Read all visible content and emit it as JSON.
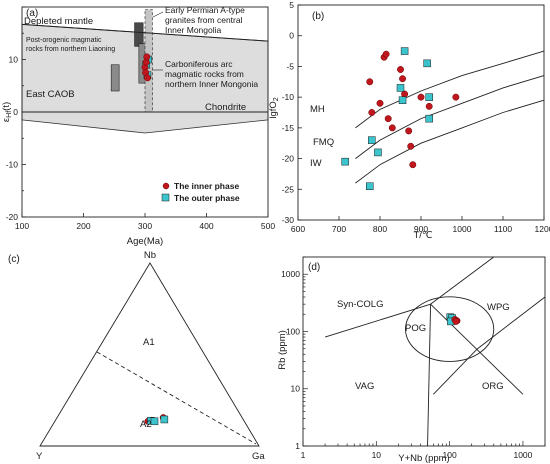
{
  "figure": {
    "panels": [
      {
        "id": "a",
        "panel_label": "(a)",
        "chart_data": {
          "type": "scatter",
          "xlabel": "Age(Ma)",
          "ylabel": "εHf(t)",
          "xlim": [
            100,
            500
          ],
          "ylim": [
            -20,
            20
          ],
          "x_ticks": [
            100,
            200,
            300,
            400,
            500
          ],
          "y_ticks": [
            -20,
            -10,
            0,
            10
          ],
          "reference_lines": [
            {
              "name": "Depleted mantle",
              "points": [
                [
                  0,
                  17.5
                ],
                [
                  500,
                  13.5
                ]
              ]
            },
            {
              "name": "Chondrite",
              "points": [
                [
                  0,
                  0
                ],
                [
                  500,
                  0
                ]
              ]
            }
          ],
          "annotations": [
            "Depleted mantle",
            "Chondrite",
            "East CAOB",
            "Post-orogenic magmatic rocks from northern Liaoning",
            "Early Permian A-type granites from central Inner Mongolia",
            "Carboniferous arc magmatic rocks from northern Inner Mongonia"
          ],
          "field_boxes": [
            {
              "x": [
                245,
                258
              ],
              "y": [
                4,
                9
              ]
            },
            {
              "x": [
                283,
                297
              ],
              "y": [
                12.5,
                17
              ]
            },
            {
              "x": [
                290,
                303
              ],
              "y": [
                5.5,
                13
              ]
            },
            {
              "x": [
                300,
                312
              ],
              "y": [
                0,
                19.5
              ]
            }
          ],
          "series": [
            {
              "name": "The inner phase",
              "x": [
                300,
                301,
                302,
                303,
                304
              ],
              "y": [
                8.5,
                7.5,
                9.5,
                10.5,
                6.5
              ]
            },
            {
              "name": "The outer phase",
              "x": [
                302,
                304,
                305
              ],
              "y": [
                9,
                7,
                10
              ]
            }
          ],
          "legend": [
            "The inner phase",
            "The outer phase"
          ],
          "legend_position": "bottom-right"
        }
      },
      {
        "id": "b",
        "panel_label": "(b)",
        "chart_data": {
          "type": "scatter",
          "xlabel": "T/°C",
          "ylabel": "lgfO2",
          "xlim": [
            600,
            1200
          ],
          "ylim": [
            -30,
            5
          ],
          "x_ticks": [
            600,
            700,
            800,
            900,
            1000,
            1100,
            1200
          ],
          "y_ticks": [
            -30,
            -25,
            -20,
            -15,
            -10,
            -5,
            0,
            5
          ],
          "buffers": [
            {
              "name": "MH",
              "points": [
                [
                  740,
                  -15
                ],
                [
                  800,
                  -12
                ],
                [
                  900,
                  -9
                ],
                [
                  1000,
                  -6.5
                ],
                [
                  1100,
                  -4.5
                ],
                [
                  1200,
                  -2.5
                ]
              ]
            },
            {
              "name": "FMQ",
              "points": [
                [
                  740,
                  -20
                ],
                [
                  800,
                  -17
                ],
                [
                  900,
                  -13.5
                ],
                [
                  1000,
                  -11
                ],
                [
                  1100,
                  -8.5
                ],
                [
                  1200,
                  -6.5
                ]
              ]
            },
            {
              "name": "IW",
              "points": [
                [
                  740,
                  -24
                ],
                [
                  800,
                  -21
                ],
                [
                  900,
                  -17.5
                ],
                [
                  1000,
                  -15
                ],
                [
                  1100,
                  -12.5
                ],
                [
                  1200,
                  -10.5
                ]
              ]
            }
          ],
          "series": [
            {
              "name": "The inner phase",
              "x": [
                810,
                815,
                820,
                775,
                780,
                800,
                850,
                855,
                860,
                870,
                875,
                880,
                830,
                900,
                920,
                985
              ],
              "y": [
                -3.5,
                -3,
                -13.5,
                -7.5,
                -12.5,
                -11,
                -5.5,
                -7,
                -9.5,
                -15.5,
                -18,
                -21,
                -15,
                -10,
                -11.5,
                -10
              ]
            },
            {
              "name": "The outer phase",
              "x": [
                860,
                915,
                850,
                855,
                920,
                920,
                780,
                795,
                715,
                775
              ],
              "y": [
                -2.5,
                -4.5,
                -8.5,
                -10.5,
                -10,
                -13.5,
                -17,
                -19,
                -20.5,
                -24.5
              ]
            }
          ]
        }
      },
      {
        "id": "c",
        "panel_label": "(c)",
        "chart_data": {
          "type": "scatter",
          "ternary": true,
          "vertices": [
            "Nb",
            "Y",
            "Ga"
          ],
          "fields": [
            "A1",
            "A2"
          ],
          "series": [
            {
              "name": "The inner phase",
              "comment": "points near Y–Ga base",
              "values": [
                [
                  0.155,
                  0.36,
                  0.485
                ],
                [
                  0.135,
                  0.44,
                  0.425
                ],
                [
                  0.14,
                  0.42,
                  0.44
                ]
              ]
            },
            {
              "name": "The outer phase",
              "values": [
                [
                  0.138,
                  0.425,
                  0.437
                ],
                [
                  0.135,
                  0.41,
                  0.455
                ],
                [
                  0.145,
                  0.36,
                  0.495
                ]
              ]
            }
          ]
        }
      },
      {
        "id": "d",
        "panel_label": "(d)",
        "chart_data": {
          "type": "scatter",
          "log_scale": true,
          "xlabel": "Y+Nb (ppm)",
          "ylabel": "Rb (ppm)",
          "xlim": [
            1,
            2000
          ],
          "ylim": [
            1,
            2000
          ],
          "x_ticks": [
            1,
            10,
            100,
            1000
          ],
          "y_ticks": [
            1,
            10,
            100,
            1000
          ],
          "fields": [
            "Syn-COLG",
            "WPG",
            "POG",
            "VAG",
            "ORG"
          ],
          "series": [
            {
              "name": "The inner phase",
              "x": [
                118,
                126,
                122
              ],
              "y": [
                162,
                154,
                150
              ]
            },
            {
              "name": "The outer phase",
              "x": [
                102,
                108,
                104
              ],
              "y": [
                178,
                172,
                150
              ]
            }
          ]
        }
      }
    ],
    "legend_labels": [
      "The inner phase",
      "The outer phase"
    ],
    "colors": {
      "inner": "#c0161d",
      "outer": "#3cc4cd",
      "field_fill": "#dddddd",
      "box_fill": "#8a8a8a",
      "box_dark": "#4a4a4a"
    },
    "labels": {
      "a": {
        "depleted": "Depleted mantle",
        "chondrite": "Chondrite",
        "caob": "East CAOB",
        "post1": "Post-orogenic magmatic",
        "post2": "rocks from northern Liaoning",
        "perm1": "Early Permian A-type",
        "perm2": "granites from central",
        "perm3": "Inner Mongolia",
        "carb1": "Carboniferous arc",
        "carb2": "magmatic rocks from",
        "carb3": "northern Inner Mongonia",
        "xlabel": "Age(Ma)",
        "ylabel_base": "ε",
        "ylabel_sub": "Hf",
        "ylabel_tail": "(t)"
      },
      "b": {
        "mh": "MH",
        "fmq": "FMQ",
        "iw": "IW",
        "ylabel_base": "lgfO",
        "ylabel_sub": "2",
        "xlabel": "T/℃"
      },
      "c": {
        "nb": "Nb",
        "y": "Y",
        "ga": "Ga",
        "a1": "A1",
        "a2": "A2"
      },
      "d": {
        "syn": "Syn-COLG",
        "wpg": "WPG",
        "pog": "POG",
        "vag": "VAG",
        "org": "ORG",
        "xlabel": "Y+Nb (ppm)",
        "ylabel": "Rb (ppm)"
      }
    }
  }
}
